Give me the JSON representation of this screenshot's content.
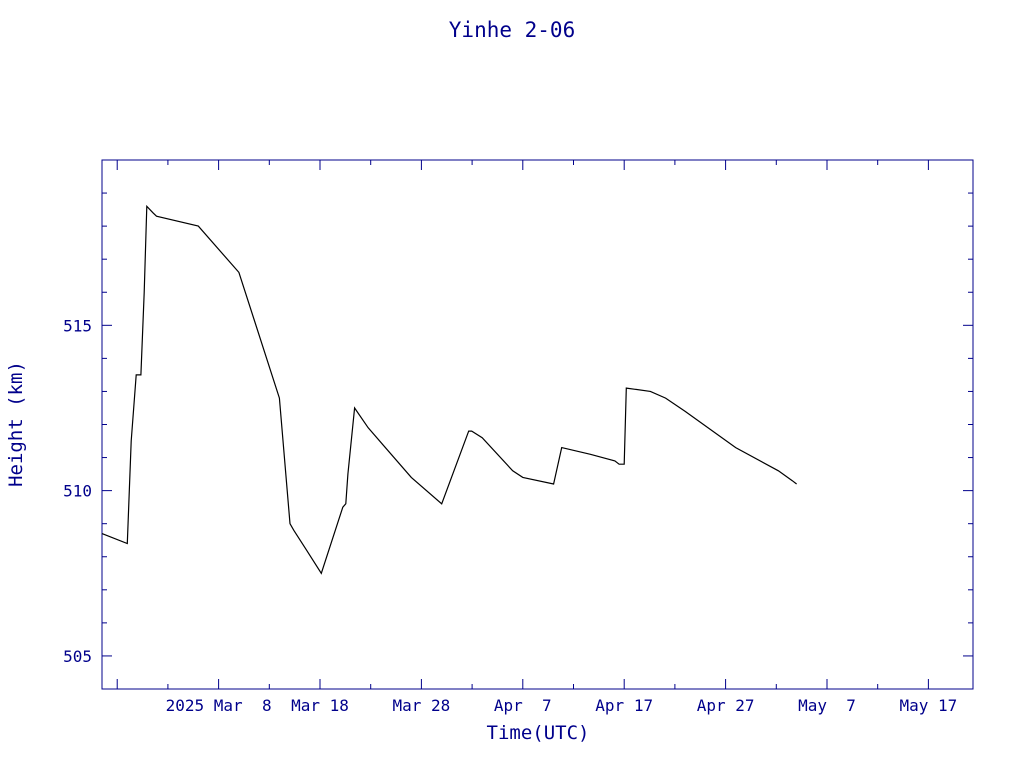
{
  "chart_data": {
    "type": "line",
    "title": "Yinhe 2-06",
    "xlabel": "Time(UTC)",
    "ylabel": "Height (km)",
    "x_tick_labels": [
      "2025 Mar  8",
      "Mar 18",
      "Mar 28",
      "Apr  7",
      "Apr 17",
      "Apr 27",
      "May  7",
      "May 17"
    ],
    "y_tick_labels": [
      "505",
      "510",
      "515"
    ],
    "x_range": [
      "2025-02-24T12:00",
      "2025-05-21T09:36"
    ],
    "ylim": [
      504,
      520
    ],
    "grid": false,
    "colors": {
      "axis": "#00008b",
      "text": "#00008b",
      "line": "#000000"
    },
    "series": [
      {
        "x": [
          "2025-02-24T12:00",
          "2025-02-27T00:00",
          "2025-02-27T09:00",
          "2025-02-27T21:00",
          "2025-02-28T08:00",
          "2025-02-28T16:00",
          "2025-02-28T22:00",
          "2025-03-01T13:00",
          "2025-03-01T21:00",
          "2025-03-06T00:00",
          "2025-03-10T00:00",
          "2025-03-14T00:00",
          "2025-03-15T01:00",
          "2025-03-15T10:00",
          "2025-03-16T16:00",
          "2025-03-18T03:00",
          "2025-03-20T06:00",
          "2025-03-20T13:00",
          "2025-03-20T18:00",
          "2025-03-21T10:00",
          "2025-03-22T18:00",
          "2025-03-27T00:00",
          "2025-03-30T00:00",
          "2025-04-01T16:00",
          "2025-04-01T23:00",
          "2025-04-03T00:00",
          "2025-04-06T00:00",
          "2025-04-07T00:00",
          "2025-04-10T01:00",
          "2025-04-10T20:00",
          "2025-04-13T16:00",
          "2025-04-16T02:00",
          "2025-04-16T12:00",
          "2025-04-17T00:00",
          "2025-04-17T05:00",
          "2025-04-19T14:00",
          "2025-04-21T02:00",
          "2025-04-23T00:00",
          "2025-04-28T00:00",
          "2025-05-02T05:00",
          "2025-05-03T14:00",
          "2025-05-04T00:00"
        ],
        "y": [
          508.7,
          508.4,
          511.5,
          513.5,
          513.5,
          516.0,
          518.6,
          518.4,
          518.3,
          518.0,
          516.6,
          512.8,
          509.0,
          508.8,
          508.2,
          507.5,
          509.5,
          509.6,
          510.5,
          512.5,
          511.9,
          510.4,
          509.6,
          511.8,
          511.8,
          511.6,
          510.6,
          510.4,
          510.2,
          511.3,
          511.1,
          510.9,
          510.8,
          510.8,
          513.1,
          513.0,
          512.8,
          512.4,
          511.3,
          510.6,
          510.3,
          510.2
        ]
      }
    ]
  }
}
